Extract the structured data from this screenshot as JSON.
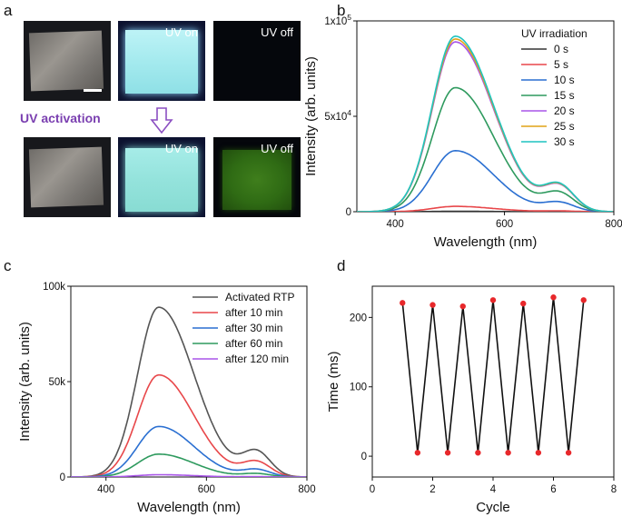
{
  "panels": {
    "a": "a",
    "b": "b",
    "c": "c",
    "d": "d"
  },
  "photos": {
    "uv_on_label": "UV on",
    "uv_off_label": "UV off",
    "activation_label": "UV activation",
    "colors": {
      "film": "#8a8680",
      "film_dark": "#55524d",
      "glow_cyan_top": "#9fe6ee",
      "glow_cyan_bottom": "#8fe6e0",
      "afterglow_green": "#2f6b14",
      "dark_bg": "#05070c",
      "blue_bg": "#0d1230",
      "activation_color": "#7a3fb0"
    }
  },
  "chart_data": [
    {
      "id": "b",
      "type": "line",
      "xlabel": "Wavelength (nm)",
      "ylabel": "Intensity (arb. units)",
      "xlim": [
        330,
        800
      ],
      "ylim": [
        0,
        100000
      ],
      "xticks": [
        400,
        600,
        800
      ],
      "xtick_labels": [
        "400",
        "600",
        "800"
      ],
      "yticks": [
        0,
        50000,
        100000
      ],
      "ytick_labels": [
        {
          "base": "0",
          "exp": ""
        },
        {
          "base": "5x10",
          "exp": "4"
        },
        {
          "base": "1x10",
          "exp": "5"
        }
      ],
      "legend_title": "UV irradiation",
      "legend_position": "top-right",
      "peak_wavelength": 510,
      "series": [
        {
          "name": "0 s",
          "color": "#333333",
          "peak": 200
        },
        {
          "name": "5 s",
          "color": "#e8474a",
          "peak": 2800
        },
        {
          "name": "10 s",
          "color": "#2a6fd1",
          "peak": 32000
        },
        {
          "name": "15 s",
          "color": "#2e9a5e",
          "peak": 65000
        },
        {
          "name": "20 s",
          "color": "#a855e8",
          "peak": 89000
        },
        {
          "name": "25 s",
          "color": "#e0a317",
          "peak": 90500
        },
        {
          "name": "30 s",
          "color": "#1fc4c0",
          "peak": 92000
        }
      ]
    },
    {
      "id": "c",
      "type": "line",
      "xlabel": "Wavelength (nm)",
      "ylabel": "Intensity (arb. units)",
      "xlim": [
        330,
        800
      ],
      "ylim": [
        0,
        100000
      ],
      "xticks": [
        400,
        600,
        800
      ],
      "xtick_labels": [
        "400",
        "600",
        "800"
      ],
      "yticks": [
        0,
        50000,
        100000
      ],
      "ytick_labels": [
        {
          "base": "0",
          "exp": ""
        },
        {
          "base": "50k",
          "exp": ""
        },
        {
          "base": "100k",
          "exp": ""
        }
      ],
      "legend_position": "top-right",
      "peak_wavelength": 505,
      "series": [
        {
          "name": "Activated RTP",
          "color": "#555555",
          "peak": 89000
        },
        {
          "name": "after 10 min",
          "color": "#e8474a",
          "peak": 53500
        },
        {
          "name": "after 30 min",
          "color": "#2a6fd1",
          "peak": 26500
        },
        {
          "name": "after 60 min",
          "color": "#2e9a5e",
          "peak": 12000
        },
        {
          "name": "after 120 min",
          "color": "#a855e8",
          "peak": 1200
        }
      ]
    },
    {
      "id": "d",
      "type": "line",
      "xlabel": "Cycle",
      "ylabel": "Time (ms)",
      "xlim": [
        0,
        8
      ],
      "ylim": [
        -30,
        245
      ],
      "xticks": [
        0,
        2,
        4,
        6,
        8
      ],
      "xtick_labels": [
        "0",
        "2",
        "4",
        "6",
        "8"
      ],
      "yticks": [
        0,
        100,
        200
      ],
      "ytick_labels": [
        {
          "base": "0",
          "exp": ""
        },
        {
          "base": "100",
          "exp": ""
        },
        {
          "base": "200",
          "exp": ""
        }
      ],
      "line_color": "#111111",
      "marker_color": "#e8282b",
      "x": [
        1,
        1.5,
        2,
        2.5,
        3,
        3.5,
        4,
        4.5,
        5,
        5.5,
        6,
        6.5,
        7
      ],
      "y": [
        221,
        5,
        218,
        5,
        216,
        5,
        225,
        5,
        220,
        5,
        229,
        5,
        225
      ]
    }
  ]
}
